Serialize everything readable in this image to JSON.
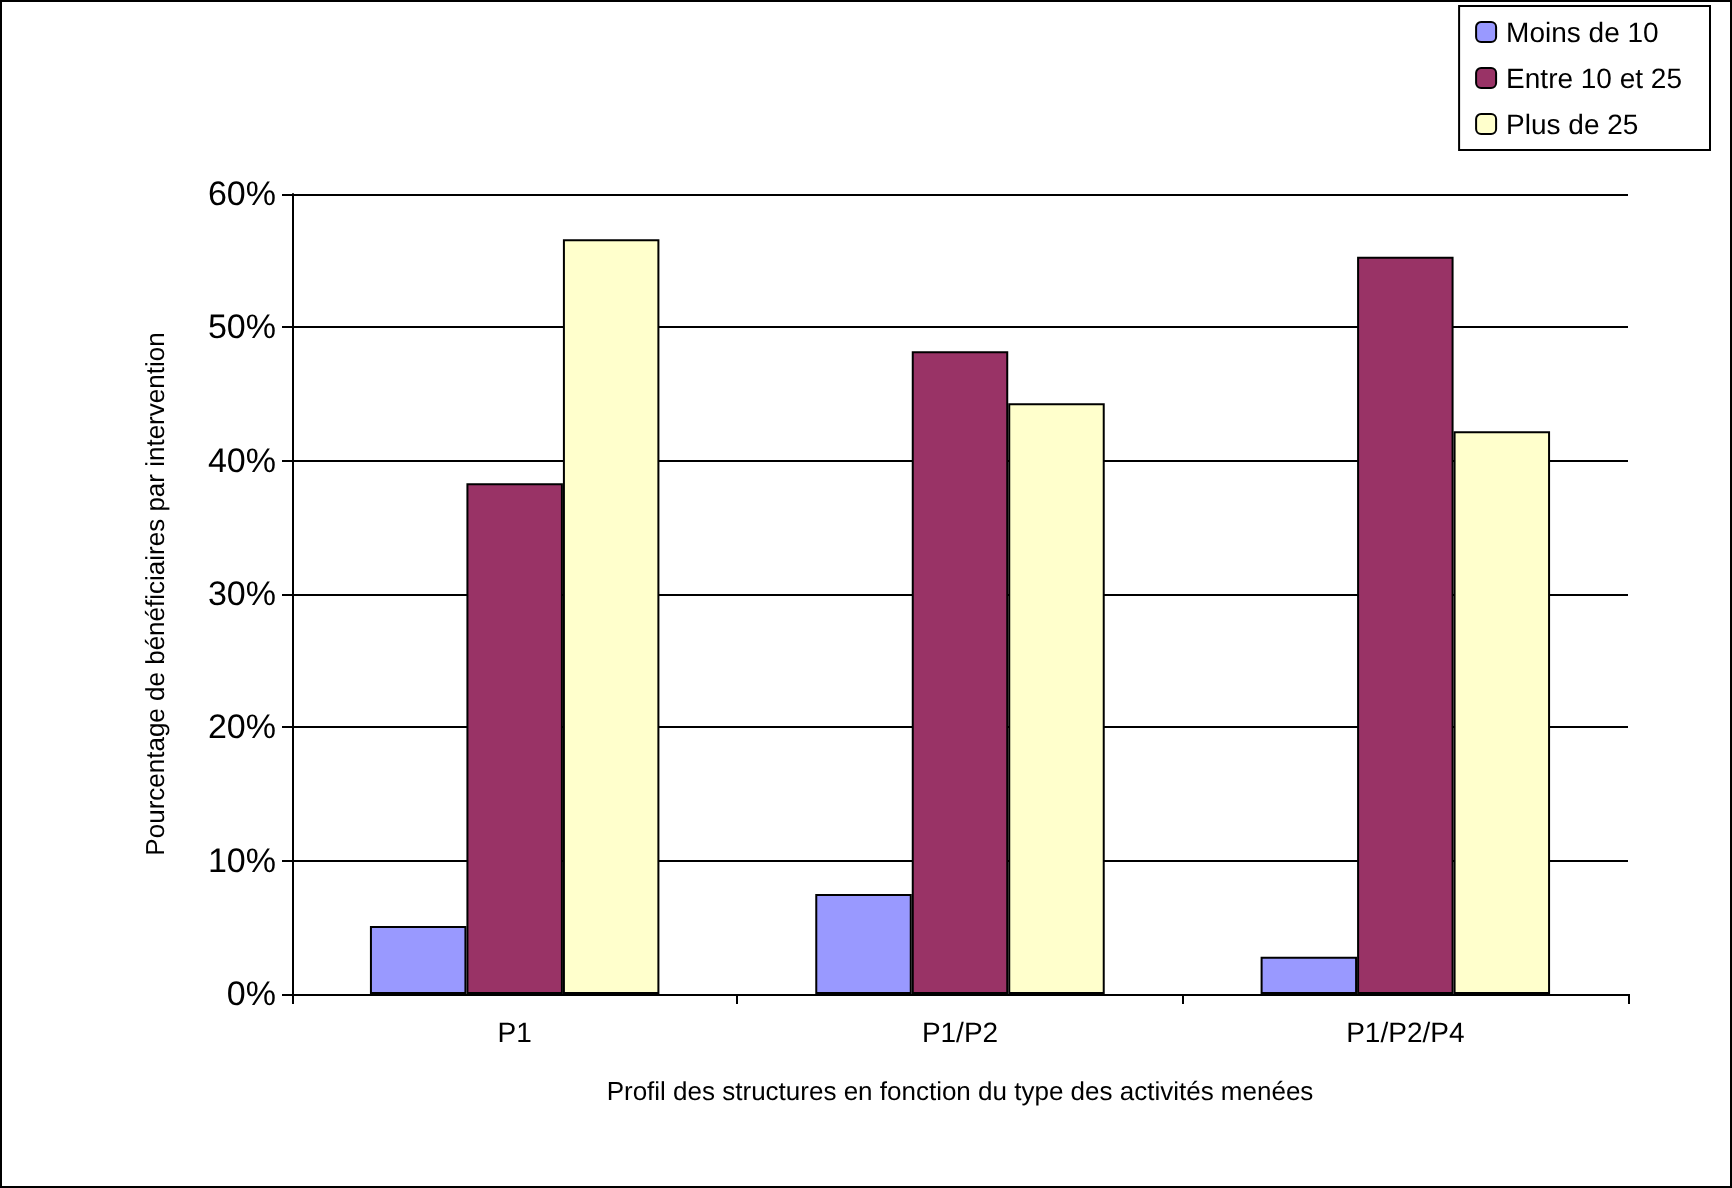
{
  "chart_data": {
    "type": "bar",
    "xlabel": "Profil des structures en fonction du type des activités menées",
    "ylabel": "Pourcentage de bénéficiaires par intervention",
    "categories": [
      "P1",
      "P1/P2",
      "P1/P2/P4"
    ],
    "series": [
      {
        "name": "Moins de 10",
        "color": "#9999ff",
        "values": [
          5.1,
          7.5,
          2.8
        ]
      },
      {
        "name": "Entre 10 et 25",
        "color": "#993366",
        "values": [
          38.3,
          48.2,
          55.3
        ]
      },
      {
        "name": "Plus de 25",
        "color": "#ffffcc",
        "values": [
          56.6,
          44.3,
          42.2
        ]
      }
    ],
    "ylim": [
      0,
      60
    ],
    "yticks": [
      {
        "value": 0,
        "label": "0%"
      },
      {
        "value": 10,
        "label": "10%"
      },
      {
        "value": 20,
        "label": "20%"
      },
      {
        "value": 30,
        "label": "30%"
      },
      {
        "value": 40,
        "label": "40%"
      },
      {
        "value": 50,
        "label": "50%"
      },
      {
        "value": 60,
        "label": "60%"
      }
    ],
    "grid": "y",
    "legend": "top right"
  }
}
